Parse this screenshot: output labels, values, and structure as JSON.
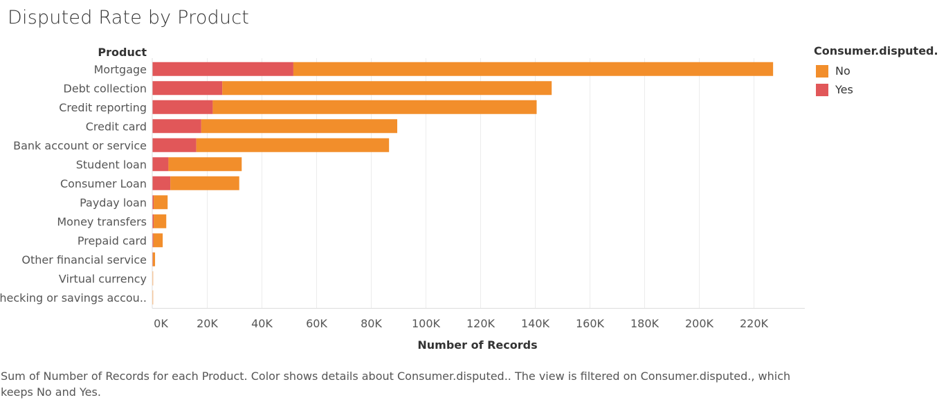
{
  "chart_data": {
    "type": "bar",
    "orientation": "horizontal",
    "stacked": true,
    "title": "Disputed Rate by Product",
    "category_header": "Product",
    "xlabel": "Number of Records",
    "xlim": [
      0,
      240000
    ],
    "xticks": [
      0,
      20000,
      40000,
      60000,
      80000,
      100000,
      120000,
      140000,
      160000,
      180000,
      200000,
      220000
    ],
    "xtick_labels": [
      "0K",
      "20K",
      "40K",
      "60K",
      "80K",
      "100K",
      "120K",
      "140K",
      "160K",
      "180K",
      "200K",
      "220K"
    ],
    "categories": [
      "Mortgage",
      "Debt collection",
      "Credit reporting",
      "Credit card",
      "Bank account or service",
      "Student loan",
      "Consumer Loan",
      "Payday loan",
      "Money transfers",
      "Prepaid card",
      "Other financial service",
      "Virtual currency",
      "Checking or savings accou.."
    ],
    "series": [
      {
        "name": "Yes",
        "color": "#e15759",
        "values": [
          51500,
          25500,
          22000,
          17800,
          16000,
          5800,
          6500,
          400,
          400,
          300,
          100,
          0,
          0
        ]
      },
      {
        "name": "No",
        "color": "#f28e2b",
        "values": [
          175500,
          120500,
          118500,
          71700,
          70500,
          26800,
          25200,
          5100,
          4600,
          3400,
          800,
          20,
          20
        ]
      }
    ],
    "legend": {
      "title": "Consumer.disputed.",
      "position": "right",
      "entries": [
        "No",
        "Yes"
      ]
    },
    "grid": {
      "vertical": true,
      "horizontal": false
    }
  },
  "caption": "Sum of Number of Records for each Product.  Color shows details about Consumer.disputed.. The view is filtered on Consumer.disputed., which keeps No and Yes."
}
